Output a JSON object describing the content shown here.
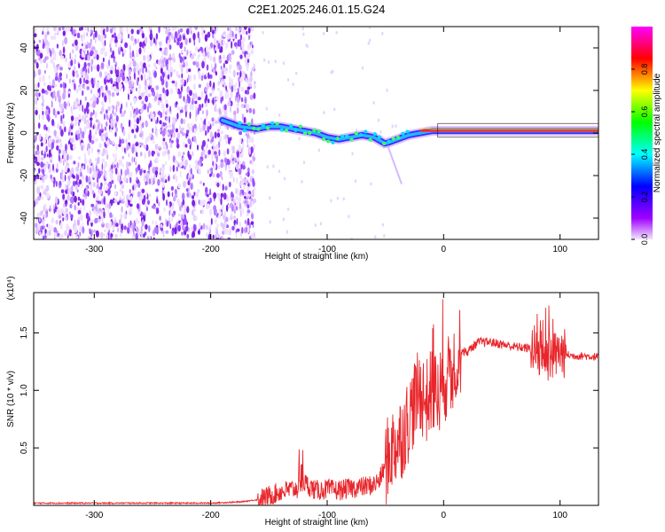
{
  "title": "C2E1.2025.246.01.15.G24",
  "chart_data": [
    {
      "type": "heatmap",
      "xlabel": "Height of straight line (km)",
      "ylabel": "Frequency (Hz)",
      "xlim": [
        -352,
        133
      ],
      "ylim": [
        -50,
        50
      ],
      "xticks": [
        -300,
        -200,
        -100,
        0,
        100
      ],
      "yticks": [
        -40,
        -20,
        0,
        20,
        40
      ],
      "xtick_labels": [
        "-300",
        "-200",
        "-100",
        "0",
        "100"
      ],
      "ytick_labels": [
        "-40",
        "-20",
        "0",
        "20",
        "40"
      ],
      "colorbar": {
        "label": "Normalized spectral amplitude",
        "range": [
          0,
          1
        ],
        "ticks": [
          0.0,
          0.2,
          0.4,
          0.6,
          0.8
        ],
        "tick_labels": [
          "0.0",
          "0.2",
          "0.4",
          "0.6",
          "0.8"
        ],
        "colormap": [
          "#f2e6ff",
          "#a000ff",
          "#0000ff",
          "#00ffff",
          "#00ff00",
          "#ffff00",
          "#ff0000",
          "#ff00ff"
        ]
      },
      "noise_region_x": [
        -352,
        -162
      ],
      "signal_track": {
        "x": [
          -190,
          -175,
          -160,
          -150,
          -140,
          -130,
          -120,
          -110,
          -100,
          -90,
          -80,
          -70,
          -60,
          -50,
          -45,
          -40,
          -30,
          -20,
          -10,
          0,
          20,
          40,
          60,
          73,
          80,
          90,
          100,
          115,
          133
        ],
        "y": [
          6,
          3,
          2,
          3,
          3,
          2,
          1,
          0,
          -2,
          -3,
          -2,
          -1,
          -2,
          -5,
          -4,
          -3,
          -1,
          0,
          1,
          1,
          1,
          1,
          1,
          1,
          1,
          1,
          1,
          1,
          1
        ]
      },
      "grid": false
    },
    {
      "type": "line",
      "xlabel": "Height of straight line (km)",
      "ylabel": "SNR (10 * v/v)",
      "y_multiplier": "(x10⁴)",
      "xlim": [
        -352,
        133
      ],
      "ylim": [
        0,
        1.85
      ],
      "xticks": [
        -300,
        -200,
        -100,
        0,
        100
      ],
      "yticks": [
        0.5,
        1.0,
        1.5
      ],
      "xtick_labels": [
        "-300",
        "-200",
        "-100",
        "0",
        "100"
      ],
      "ytick_labels": [
        "0.5",
        "1.0",
        "1.5"
      ],
      "line_color": "#e8262b",
      "x": [
        -352,
        -300,
        -250,
        -200,
        -175,
        -160,
        -150,
        -140,
        -130,
        -122,
        -120,
        -110,
        -100,
        -90,
        -80,
        -70,
        -60,
        -55,
        -50,
        -45,
        -40,
        -35,
        -30,
        -25,
        -20,
        -15,
        -10,
        -5,
        0,
        5,
        10,
        15,
        20,
        25,
        30,
        40,
        50,
        60,
        70,
        80,
        85,
        90,
        95,
        100,
        110,
        120,
        133
      ],
      "y": [
        0.02,
        0.02,
        0.02,
        0.02,
        0.03,
        0.05,
        0.08,
        0.12,
        0.14,
        0.15,
        0.2,
        0.13,
        0.14,
        0.13,
        0.15,
        0.16,
        0.18,
        0.22,
        0.35,
        0.48,
        0.55,
        0.62,
        0.75,
        0.9,
        1.0,
        0.9,
        1.0,
        0.95,
        1.1,
        1.1,
        1.25,
        1.35,
        1.33,
        1.38,
        1.42,
        1.42,
        1.4,
        1.38,
        1.37,
        1.35,
        1.3,
        1.28,
        1.3,
        1.33,
        1.3,
        1.3,
        1.29
      ],
      "grid": false
    }
  ]
}
